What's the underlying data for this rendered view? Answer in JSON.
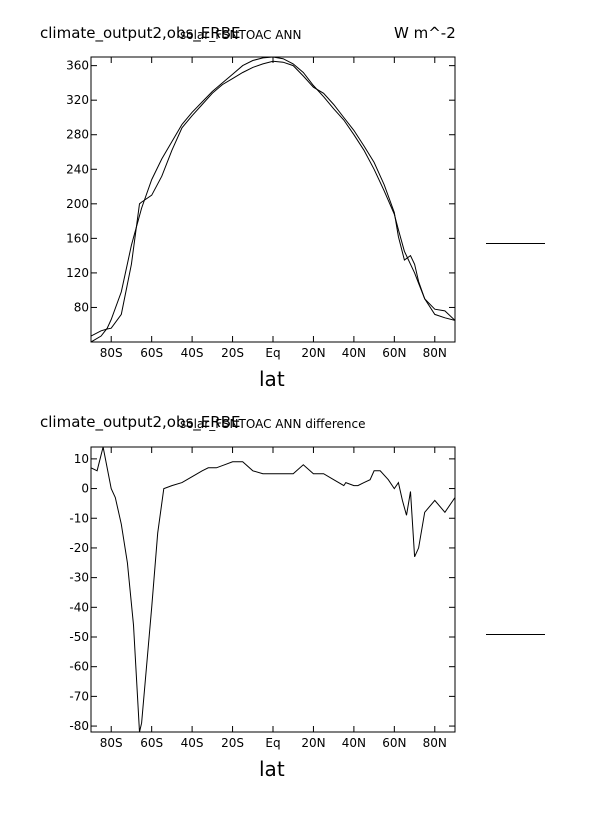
{
  "chart_data": [
    {
      "type": "line",
      "title": "climate_output2,obs_ERBE",
      "subtitle": "solar_FSNTOAC ANN",
      "units": "W m^-2",
      "xlabel": "lat",
      "ylabel": "",
      "xlim": [
        -90,
        90
      ],
      "ylim": [
        40,
        370
      ],
      "xticks": [
        -80,
        -60,
        -40,
        -20,
        0,
        20,
        40,
        60,
        80
      ],
      "xtick_labels": [
        "80S",
        "60S",
        "40S",
        "20S",
        "Eq",
        "20N",
        "40N",
        "60N",
        "80N"
      ],
      "yticks": [
        80,
        120,
        160,
        200,
        240,
        280,
        320,
        360
      ],
      "ytick_labels": [
        "80",
        "120",
        "160",
        "200",
        "240",
        "280",
        "320",
        "360"
      ],
      "grid": false,
      "series": [
        {
          "x": [
            -90,
            -85,
            -82,
            -80,
            -75,
            -70,
            -65,
            -60,
            -55,
            -50,
            -45,
            -40,
            -35,
            -30,
            -25,
            -20,
            -15,
            -10,
            -5,
            0,
            5,
            10,
            15,
            20,
            25,
            30,
            35,
            40,
            45,
            50,
            55,
            60,
            62,
            65,
            70,
            72,
            75,
            80,
            85,
            90
          ],
          "y": [
            40,
            47,
            56,
            66,
            98,
            152,
            195,
            228,
            252,
            272,
            292,
            306,
            318,
            330,
            340,
            350,
            360,
            366,
            369,
            370,
            368,
            362,
            352,
            337,
            324,
            310,
            297,
            280,
            262,
            240,
            215,
            188,
            170,
            145,
            120,
            108,
            90,
            72,
            68,
            65
          ]
        },
        {
          "x": [
            -90,
            -85,
            -82,
            -80,
            -75,
            -70,
            -66,
            -65,
            -60,
            -55,
            -50,
            -45,
            -40,
            -35,
            -30,
            -25,
            -20,
            -15,
            -10,
            -5,
            0,
            5,
            10,
            15,
            20,
            25,
            30,
            35,
            40,
            45,
            50,
            55,
            60,
            62,
            65,
            68,
            70,
            72,
            75,
            80,
            85,
            90
          ],
          "y": [
            47,
            53,
            55,
            56,
            72,
            130,
            200,
            202,
            210,
            232,
            262,
            288,
            302,
            315,
            328,
            338,
            345,
            352,
            358,
            362,
            365,
            364,
            360,
            348,
            335,
            328,
            315,
            300,
            285,
            267,
            248,
            222,
            190,
            162,
            135,
            140,
            130,
            110,
            90,
            78,
            76,
            65
          ]
        }
      ]
    },
    {
      "type": "line",
      "title": "climate_output2,obs_ERBE",
      "subtitle": "solar_FSNTOAC ANN difference",
      "units": "",
      "xlabel": "lat",
      "ylabel": "",
      "xlim": [
        -90,
        90
      ],
      "ylim": [
        -82,
        14
      ],
      "xticks": [
        -80,
        -60,
        -40,
        -20,
        0,
        20,
        40,
        60,
        80
      ],
      "xtick_labels": [
        "80S",
        "60S",
        "40S",
        "20S",
        "Eq",
        "20N",
        "40N",
        "60N",
        "80N"
      ],
      "yticks": [
        10,
        0,
        -10,
        -20,
        -30,
        -40,
        -50,
        -60,
        -70,
        -80
      ],
      "ytick_labels": [
        "10",
        "0",
        "-10",
        "-20",
        "-30",
        "-40",
        "-50",
        "-60",
        "-70",
        "-80"
      ],
      "grid": false,
      "series": [
        {
          "x": [
            -90,
            -87,
            -84,
            -80,
            -78,
            -75,
            -72,
            -69,
            -66,
            -65,
            -60,
            -57,
            -54,
            -50,
            -45,
            -40,
            -35,
            -32,
            -28,
            -24,
            -20,
            -15,
            -10,
            -5,
            0,
            5,
            10,
            15,
            20,
            25,
            30,
            35,
            36,
            40,
            42,
            45,
            48,
            50,
            53,
            57,
            60,
            62,
            64,
            66,
            68,
            70,
            72,
            75,
            80,
            85,
            90
          ],
          "y": [
            7,
            6,
            14,
            0,
            -3,
            -12,
            -25,
            -46,
            -82,
            -79,
            -40,
            -15,
            0,
            1,
            2,
            4,
            6,
            7,
            7,
            8,
            9,
            9,
            6,
            5,
            5,
            5,
            5,
            8,
            5,
            5,
            3,
            1,
            2,
            1,
            1,
            2,
            3,
            6,
            6,
            3,
            0,
            2,
            -4,
            -9,
            -1,
            -23,
            -20,
            -8,
            -4,
            -8,
            -3
          ]
        }
      ]
    }
  ]
}
